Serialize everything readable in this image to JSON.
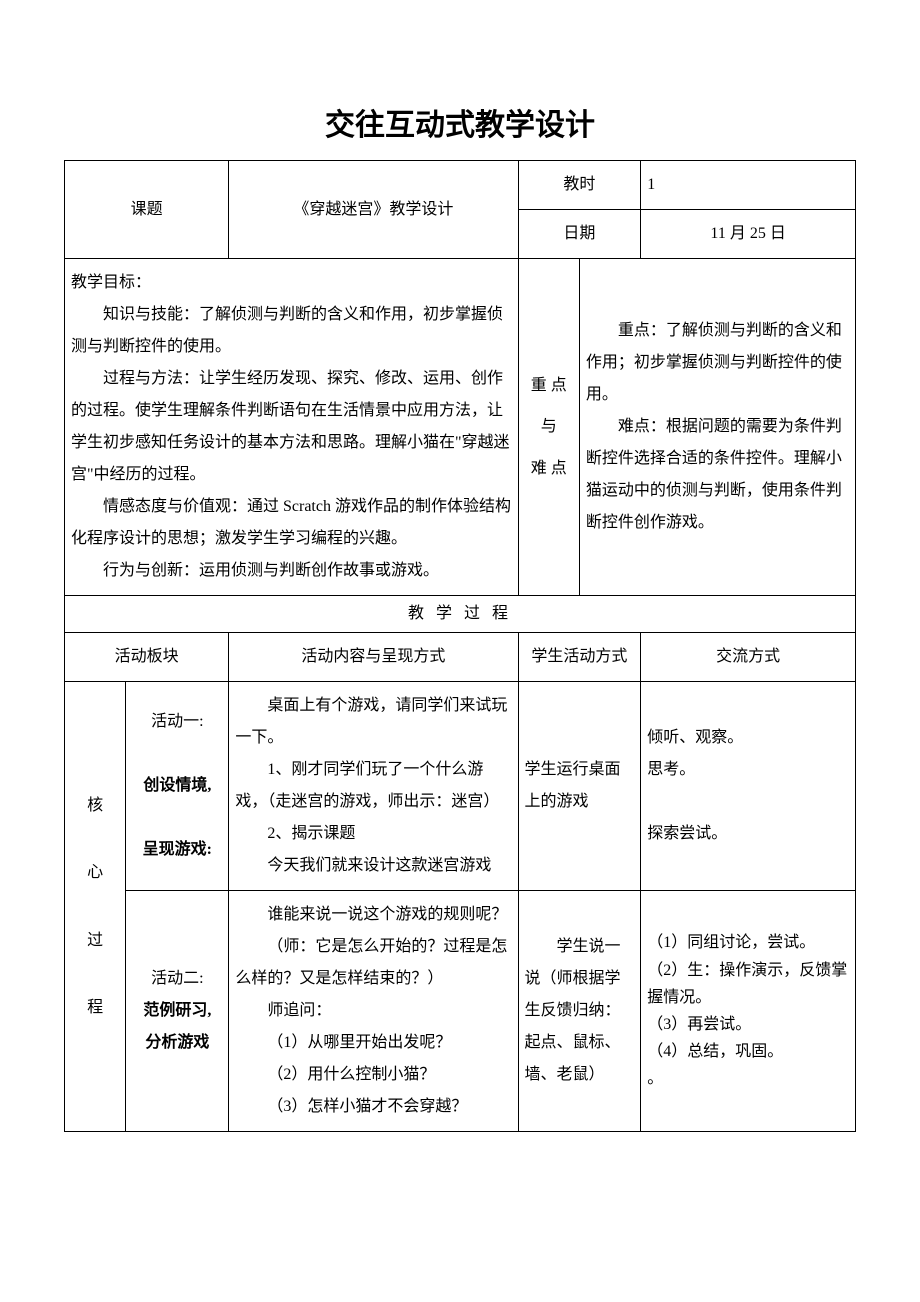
{
  "title": "交往互动式教学设计",
  "header": {
    "keti_label": "课题",
    "keti_value": "《穿越迷宫》教学设计",
    "jiaoshi_label": "教时",
    "jiaoshi_value": "1",
    "riqi_label": "日期",
    "riqi_value": "11 月 25 日"
  },
  "objectives": {
    "heading": "教学目标：",
    "p1": "知识与技能：了解侦测与判断的含义和作用，初步掌握侦测与判断控件的使用。",
    "p2": "过程与方法：让学生经历发现、探究、修改、运用、创作的过程。使学生理解条件判断语句在生活情景中应用方法，让学生初步感知任务设计的基本方法和思路。理解小猫在\"穿越迷宫\"中经历的过程。",
    "p3": "情感态度与价值观：通过 Scratch 游戏作品的制作体验结构化程序设计的思想；激发学生学习编程的兴趣。",
    "p4": "行为与创新：运用侦测与判断创作故事或游戏。"
  },
  "keypoints": {
    "label_l1": "重  点",
    "label_l2": "与",
    "label_l3": "难  点",
    "p1": "重点：了解侦测与判断的含义和作用；初步掌握侦测与判断控件的使用。",
    "p2": "难点：根据问题的需要为条件判断控件选择合适的条件控件。理解小猫运动中的侦测与判断，使用条件判断控件创作游戏。"
  },
  "process_header": "教  学  过  程",
  "columns": {
    "c1": "活动板块",
    "c2": "活动内容与呈现方式",
    "c3": "学生活动方式",
    "c4": "交流方式"
  },
  "side_label": {
    "l1": "核",
    "l2": "心",
    "l3": "过",
    "l4": "程"
  },
  "act1": {
    "title_l1": "活动一:",
    "title_l2": "创设情境,",
    "title_l3": "呈现游戏:",
    "content_p1": "桌面上有个游戏，请同学们来试玩一下。",
    "content_p2": "1、刚才同学们玩了一个什么游戏，（走迷宫的游戏，师出示：迷宫）",
    "content_p3": "2、揭示课题",
    "content_p4": "今天我们就来设计这款迷宫游戏",
    "student": "学生运行桌面上的游戏",
    "exchange_p1": "倾听、观察。",
    "exchange_p2": "思考。",
    "exchange_p3": "探索尝试。"
  },
  "act2": {
    "title_l1": "活动二:",
    "title_l2": "范例研习,",
    "title_l3": "分析游戏",
    "content_p1": "谁能来说一说这个游戏的规则呢？",
    "content_p2": "（师：它是怎么开始的？过程是怎么样的？又是怎样结束的？）",
    "content_p3": "师追问：",
    "content_p4": "（1）从哪里开始出发呢？",
    "content_p5": "（2）用什么控制小猫？",
    "content_p6": "（3）怎样小猫才不会穿越？",
    "student": "学生说一说（师根据学生反馈归纳：起点、鼠标、墙、老鼠）",
    "exchange_p1": "（1）同组讨论，尝试。",
    "exchange_p2": "（2）生：操作演示，反馈掌握情况。",
    "exchange_p3": "（3）再尝试。",
    "exchange_p4": "（4）总结，巩固。",
    "exchange_p5": "。"
  }
}
